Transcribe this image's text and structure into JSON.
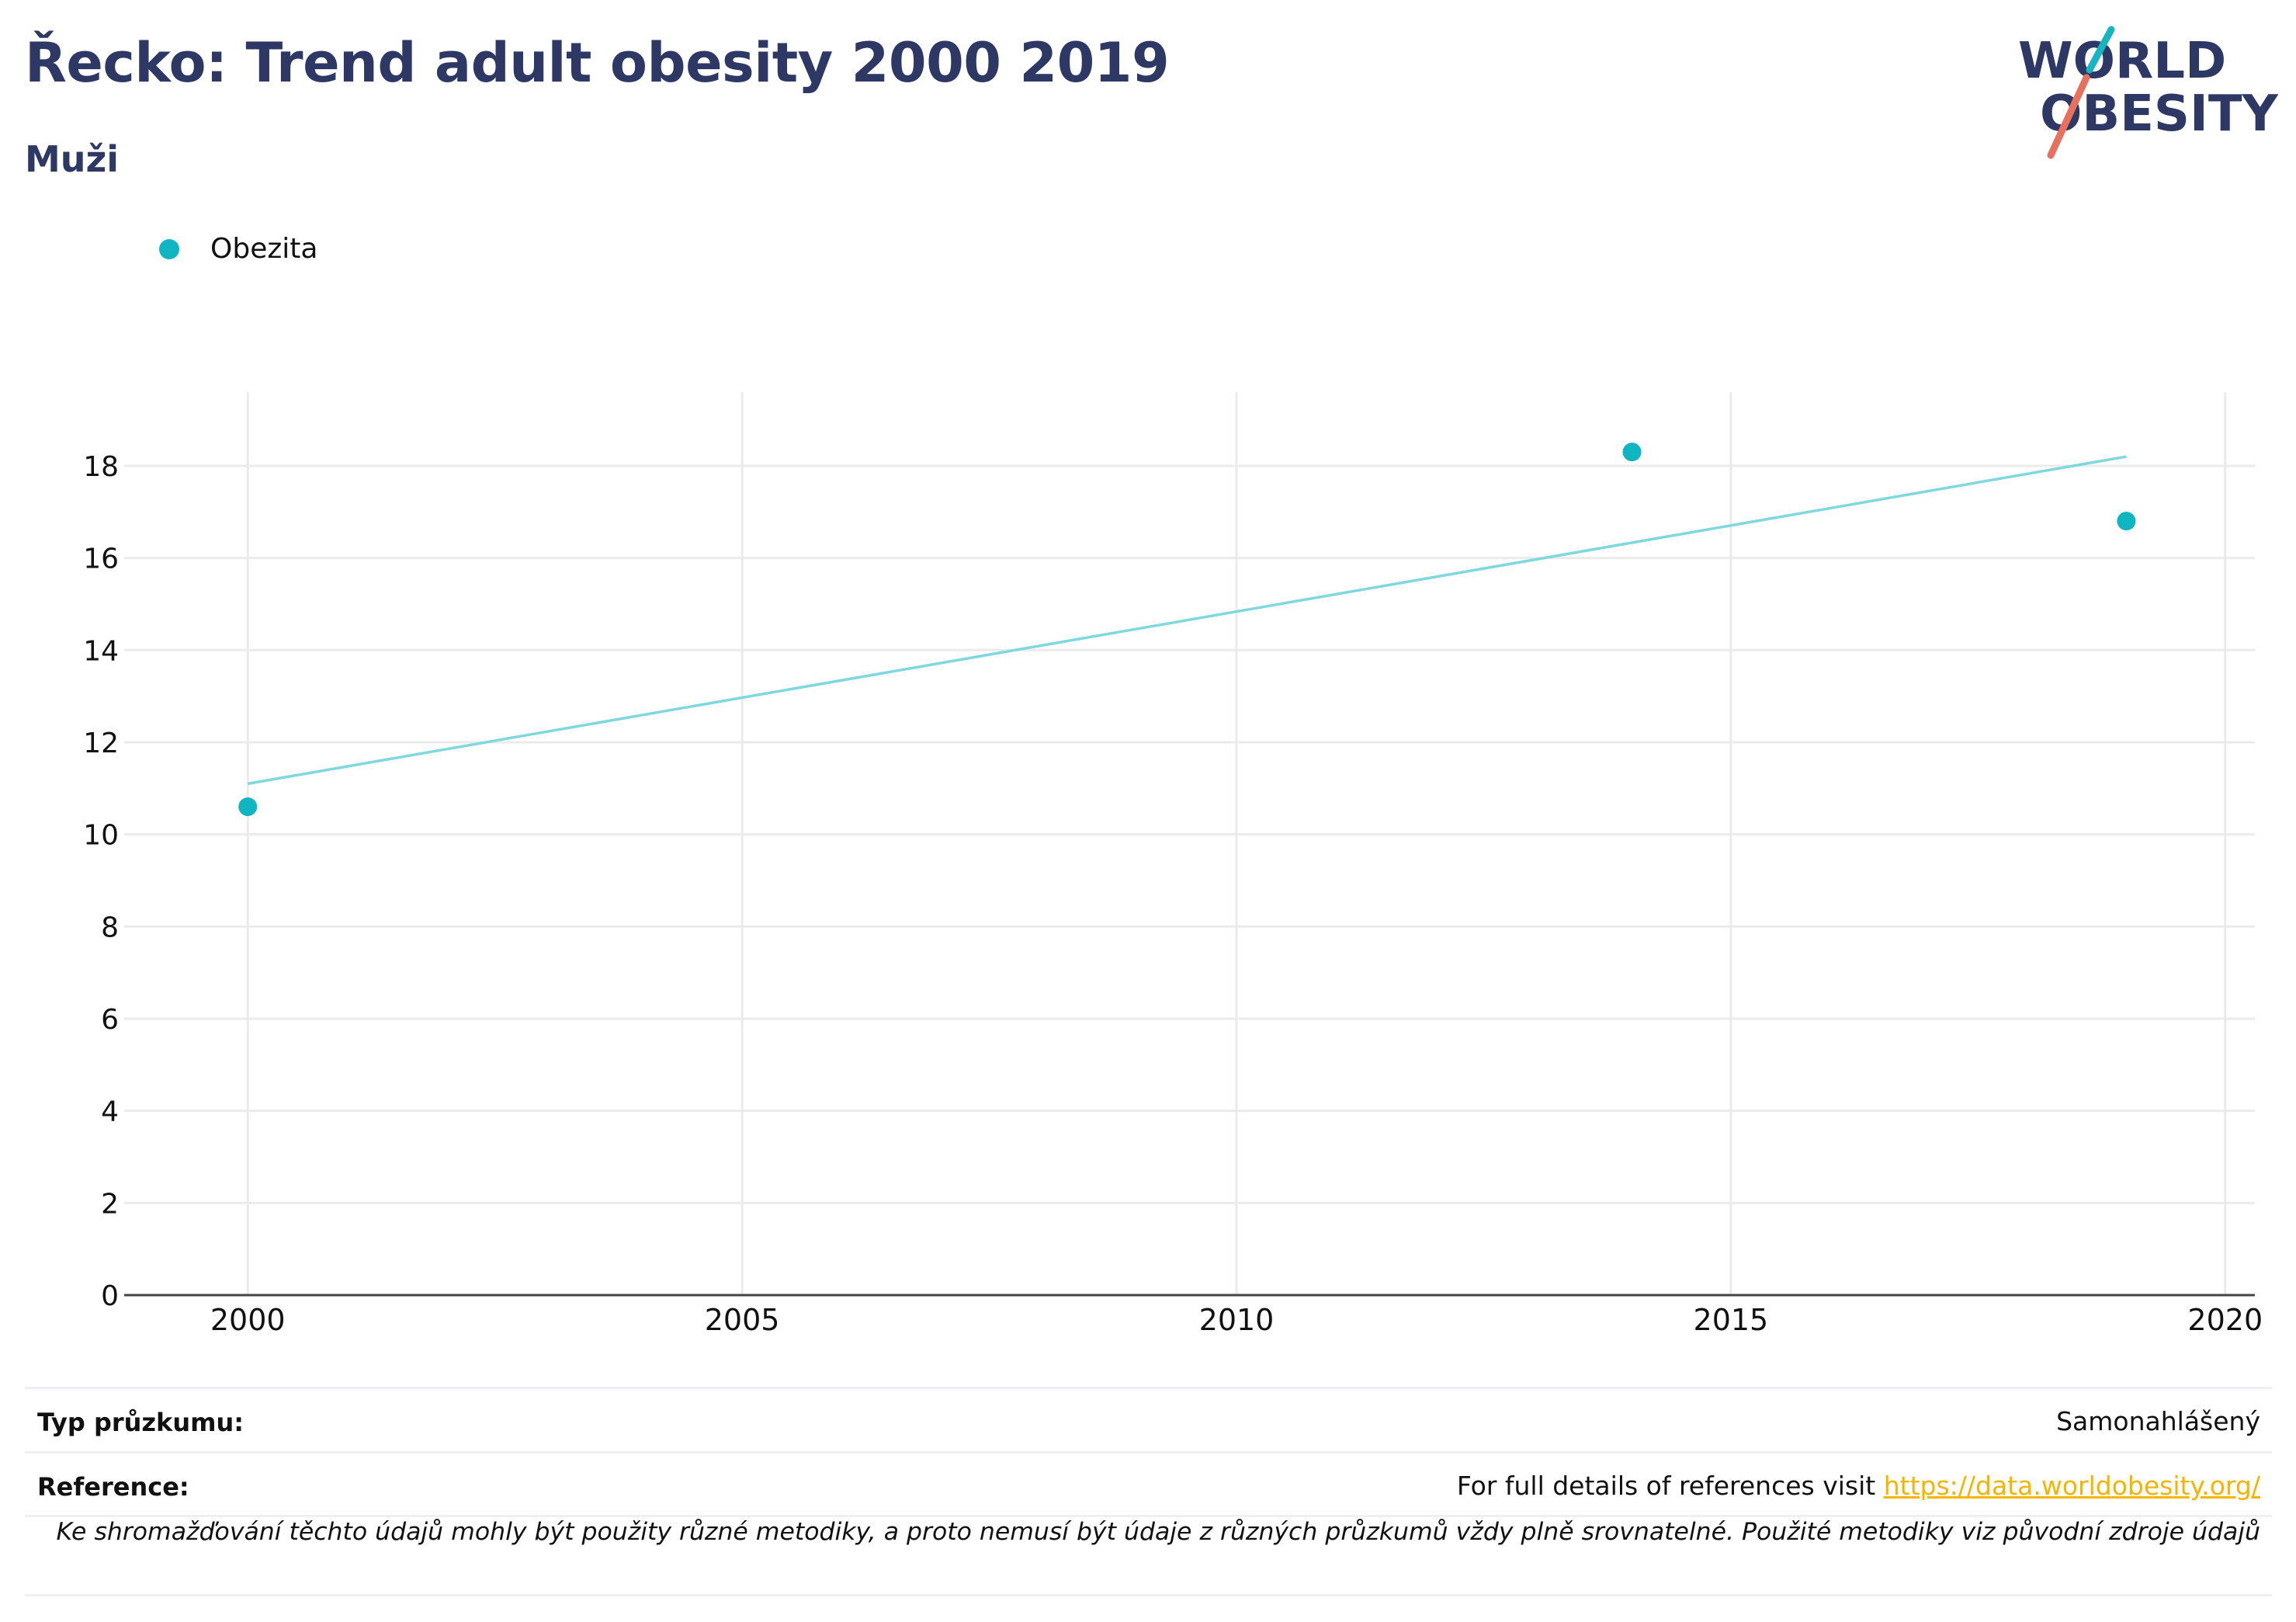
{
  "header": {
    "title": "Řecko: Trend adult obesity 2000 2019",
    "subtitle": "Muži"
  },
  "logo": {
    "line1": "WORLD",
    "line2": "OBESITY"
  },
  "legend": {
    "label": "Obezita"
  },
  "chart_data": {
    "type": "scatter",
    "series": [
      {
        "name": "Obezita",
        "x": [
          2000,
          2014,
          2019
        ],
        "y": [
          10.6,
          18.3,
          16.8
        ],
        "color": "#0fb5c0"
      }
    ],
    "trendline": {
      "x": [
        2000,
        2019
      ],
      "y": [
        11.1,
        18.2
      ],
      "color": "#7fd8de"
    },
    "xlim": [
      1998.75,
      2020.3
    ],
    "ylim": [
      0,
      19.6
    ],
    "xticks": [
      2000,
      2005,
      2010,
      2015,
      2020
    ],
    "yticks": [
      0,
      2,
      4,
      6,
      8,
      10,
      12,
      14,
      16,
      18
    ],
    "grid": true,
    "legend_position": "top-left"
  },
  "footer": {
    "survey_label": "Typ průzkumu:",
    "survey_value": "Samonahlášený",
    "reference_label": "Reference:",
    "reference_text": "For full details of references visit ",
    "reference_link": "https://data.worldobesity.org/",
    "note": "Ke shromažďování těchto údajů mohly být použity různé metodiky, a proto nemusí být údaje z různých průzkumů vždy plně srovnatelné. Použité metodiky viz původní zdroje údajů"
  }
}
